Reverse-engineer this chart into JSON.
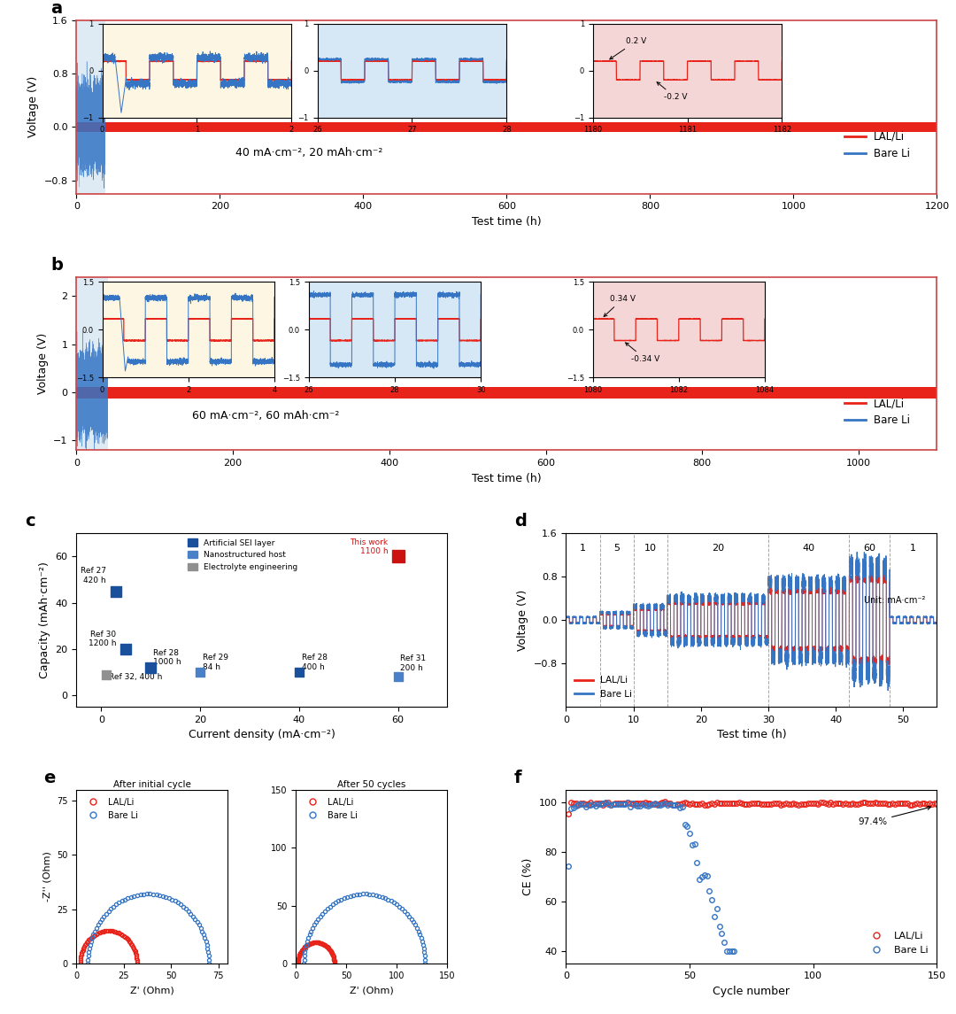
{
  "panel_a": {
    "label": "a",
    "condition": "40 mA·cm⁻², 20 mAh·cm⁻²",
    "xlim": [
      0,
      1200
    ],
    "ylim": [
      -1.0,
      1.6
    ],
    "yticks": [
      -0.8,
      0.0,
      0.8,
      1.6
    ],
    "xticks": [
      0,
      200,
      400,
      600,
      800,
      1000,
      1200
    ]
  },
  "panel_b": {
    "label": "b",
    "condition": "60 mA·cm⁻², 60 mAh·cm⁻²",
    "xlim": [
      0,
      1100
    ],
    "ylim": [
      -1.2,
      2.4
    ],
    "yticks": [
      -1.0,
      0.0,
      1.0,
      2.0
    ],
    "xticks": [
      0,
      200,
      400,
      600,
      800,
      1000
    ]
  },
  "panel_c": {
    "label": "c",
    "xlabel": "Current density (mA·cm⁻²)",
    "ylabel": "Capacity (mAh·cm⁻²)",
    "xlim": [
      -5,
      70
    ],
    "ylim": [
      -5,
      70
    ],
    "yticks": [
      0,
      20,
      40,
      60
    ],
    "xticks": [
      0,
      20,
      40,
      60
    ]
  },
  "panel_d": {
    "label": "d",
    "xlabel": "Test time (h)",
    "ylabel": "Voltage (V)",
    "xlim": [
      0,
      55
    ],
    "ylim": [
      -1.6,
      1.6
    ],
    "yticks": [
      -0.8,
      0.0,
      0.8,
      1.6
    ],
    "xticks": [
      0,
      10,
      20,
      30,
      40,
      50
    ],
    "vlines": [
      5,
      10,
      15,
      30,
      42,
      48
    ]
  },
  "panel_e1": {
    "label": "e",
    "xlabel": "Z' (Ohm)",
    "ylabel": "-Z'' (Ohm)",
    "xlim": [
      0,
      80
    ],
    "ylim": [
      0,
      80
    ],
    "yticks": [
      0,
      25,
      50,
      75
    ],
    "xticks": [
      0,
      25,
      50,
      75
    ],
    "title": "After initial cycle"
  },
  "panel_e2": {
    "xlabel": "Z' (Ohm)",
    "ylabel": "",
    "xlim": [
      0,
      150
    ],
    "ylim": [
      0,
      150
    ],
    "yticks": [
      0,
      50,
      100,
      150
    ],
    "xticks": [
      0,
      50,
      100,
      150
    ],
    "title": "After 50 cycles"
  },
  "panel_f": {
    "label": "f",
    "xlabel": "Cycle number",
    "ylabel": "CE (%)",
    "xlim": [
      0,
      150
    ],
    "ylim": [
      35,
      105
    ],
    "yticks": [
      40,
      60,
      80,
      100
    ],
    "xticks": [
      0,
      50,
      100,
      150
    ],
    "annotation": "97.4%"
  },
  "colors": {
    "red": "#e8231a",
    "blue": "#3575c4",
    "cream_bg": "#fdf6e3",
    "lightblue_bg": "#d6e8f5",
    "lightred_bg": "#f5d6d6",
    "strip_blue": "#b8d4e8"
  }
}
